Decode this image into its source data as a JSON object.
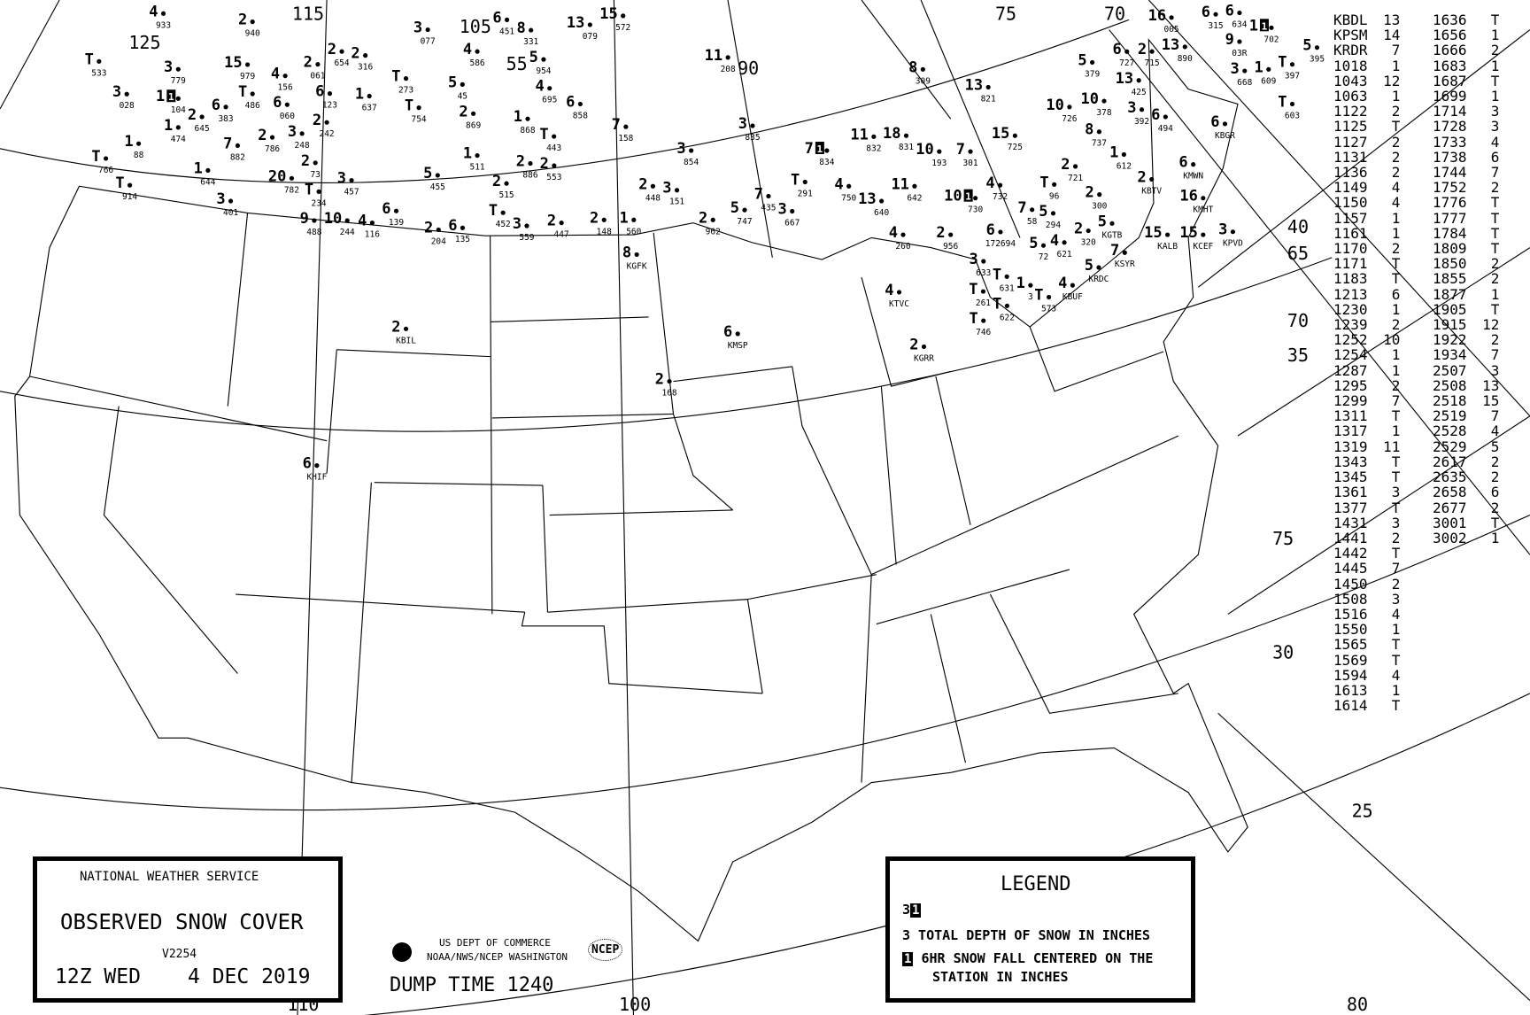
{
  "title_box": {
    "agency": "NATIONAL WEATHER SERVICE",
    "title": "OBSERVED SNOW COVER",
    "version": "V2254",
    "time": "12Z WED",
    "date": "4 DEC 2019"
  },
  "credits": {
    "line1": "US DEPT OF COMMERCE",
    "line2": "NOAA/NWS/NCEP WASHINGTON",
    "ncep_logo": "NCEP",
    "dump_time": "DUMP TIME 1240"
  },
  "legend": {
    "title": "LEGEND",
    "sample_depth": "3",
    "sample_6hr": "1",
    "depth_text": "3 TOTAL DEPTH OF SNOW IN INCHES",
    "sixhr_box": "1",
    "sixhr_text_1": "6HR SNOW FALL CENTERED ON THE",
    "sixhr_text_2": "STATION IN INCHES"
  },
  "grid_labels": [
    "125",
    "115",
    "105",
    "55",
    "90",
    "75",
    "70",
    "40",
    "65",
    "70",
    "35",
    "75",
    "30",
    "25",
    "80",
    "100",
    "110"
  ],
  "colors": {
    "ink": "#000000",
    "background": "#ffffff"
  },
  "stations": [
    {
      "v": "2",
      "id": "KBIL"
    },
    {
      "v": "6",
      "id": "KHIF"
    },
    {
      "v": "8",
      "id": "KGFK"
    },
    {
      "v": "6",
      "id": "KMSP"
    },
    {
      "v": "2",
      "id": "168"
    },
    {
      "v": "4",
      "id": "KTVC"
    },
    {
      "v": "2",
      "id": "KGRR"
    },
    {
      "v": "T",
      "id": "746"
    },
    {
      "v": "T",
      "id": "622"
    },
    {
      "v": "T",
      "id": "573"
    },
    {
      "v": "4",
      "id": "KBUF"
    },
    {
      "v": "5",
      "id": "KRDC"
    },
    {
      "v": "7",
      "id": "KSYR"
    },
    {
      "v": "5",
      "id": "KGTB"
    },
    {
      "v": "2",
      "id": "320"
    },
    {
      "v": "15",
      "id": "KALB"
    },
    {
      "v": "15",
      "id": "KCEF"
    },
    {
      "v": "3",
      "id": "KPVD"
    },
    {
      "v": "16",
      "id": "KMHT"
    },
    {
      "v": "2",
      "id": "KBTV"
    },
    {
      "v": "6",
      "id": "KMWN"
    },
    {
      "v": "6",
      "id": "KBGR"
    },
    {
      "v": "2",
      "id": "300"
    },
    {
      "v": "2",
      "id": "721"
    },
    {
      "v": "1",
      "id": "612"
    },
    {
      "v": "4",
      "id": "732"
    },
    {
      "v": "T",
      "id": "96"
    },
    {
      "v": "7",
      "id": "58"
    },
    {
      "v": "5",
      "id": "294"
    },
    {
      "v": "2",
      "id": "956"
    },
    {
      "v": "4",
      "id": "260"
    },
    {
      "v": "6",
      "id": "172694"
    },
    {
      "v": "3",
      "id": "633"
    },
    {
      "v": "T",
      "id": "631"
    },
    {
      "v": "T",
      "id": "261"
    },
    {
      "v": "5",
      "id": "72"
    },
    {
      "v": "4",
      "id": "621"
    },
    {
      "v": "1",
      "id": "3"
    },
    {
      "v": "4",
      "id": "933"
    },
    {
      "v": "3",
      "id": "779"
    },
    {
      "v": "1",
      "id": "104",
      "six": "1"
    },
    {
      "v": "15",
      "id": "979"
    },
    {
      "v": "2",
      "id": "940"
    },
    {
      "v": "T",
      "id": "533"
    },
    {
      "v": "3",
      "id": "028"
    },
    {
      "v": "1",
      "id": "474"
    },
    {
      "v": "2",
      "id": "645"
    },
    {
      "v": "6",
      "id": "383"
    },
    {
      "v": "T",
      "id": "486"
    },
    {
      "v": "4",
      "id": "156"
    },
    {
      "v": "2",
      "id": "654"
    },
    {
      "v": "2",
      "id": "316"
    },
    {
      "v": "2",
      "id": "061"
    },
    {
      "v": "6",
      "id": "123"
    },
    {
      "v": "3",
      "id": "077"
    },
    {
      "v": "4",
      "id": "586"
    },
    {
      "v": "6",
      "id": "451"
    },
    {
      "v": "8",
      "id": "331"
    },
    {
      "v": "5",
      "id": "954"
    },
    {
      "v": "13",
      "id": "079"
    },
    {
      "v": "15",
      "id": "572"
    },
    {
      "v": "4",
      "id": "695"
    },
    {
      "v": "6",
      "id": "858"
    },
    {
      "v": "1",
      "id": "868"
    },
    {
      "v": "T",
      "id": "443"
    },
    {
      "v": "7",
      "id": "158"
    },
    {
      "v": "11",
      "id": "208"
    },
    {
      "v": "8",
      "id": "309"
    },
    {
      "v": "13",
      "id": "821"
    },
    {
      "v": "10",
      "id": "726"
    },
    {
      "v": "10",
      "id": "378"
    },
    {
      "v": "5",
      "id": "379"
    },
    {
      "v": "6",
      "id": "727"
    },
    {
      "v": "2",
      "id": "715"
    },
    {
      "v": "13",
      "id": "890"
    },
    {
      "v": "13",
      "id": "425"
    },
    {
      "v": "3",
      "id": "392"
    },
    {
      "v": "6",
      "id": "494"
    },
    {
      "v": "8",
      "id": "737"
    },
    {
      "v": "15",
      "id": "725"
    },
    {
      "v": "3",
      "id": "835"
    },
    {
      "v": "3",
      "id": "854"
    },
    {
      "v": "7",
      "id": "834",
      "six": "1"
    },
    {
      "v": "11",
      "id": "832"
    },
    {
      "v": "18",
      "id": "831"
    },
    {
      "v": "10",
      "id": "193"
    },
    {
      "v": "7",
      "id": "301"
    },
    {
      "v": "13",
      "id": "640"
    },
    {
      "v": "11",
      "id": "642"
    },
    {
      "v": "4",
      "id": "750"
    },
    {
      "v": "T",
      "id": "291"
    },
    {
      "v": "10",
      "id": "730",
      "six": "1"
    },
    {
      "v": "7",
      "id": "435"
    },
    {
      "v": "5",
      "id": "747"
    },
    {
      "v": "3",
      "id": "667"
    },
    {
      "v": "2",
      "id": "962"
    },
    {
      "v": "3",
      "id": "401"
    },
    {
      "v": "1",
      "id": "644"
    },
    {
      "v": "T",
      "id": "914"
    },
    {
      "v": "T",
      "id": "766"
    },
    {
      "v": "1",
      "id": "88"
    },
    {
      "v": "7",
      "id": "882"
    },
    {
      "v": "2",
      "id": "786"
    },
    {
      "v": "20",
      "id": "782"
    },
    {
      "v": "T",
      "id": "234"
    },
    {
      "v": "3",
      "id": "457"
    },
    {
      "v": "9",
      "id": "488"
    },
    {
      "v": "10",
      "id": "244"
    },
    {
      "v": "4",
      "id": "116"
    },
    {
      "v": "6",
      "id": "139"
    },
    {
      "v": "2",
      "id": "204"
    },
    {
      "v": "6",
      "id": "135"
    },
    {
      "v": "3",
      "id": "559"
    },
    {
      "v": "2",
      "id": "447"
    },
    {
      "v": "2",
      "id": "148"
    },
    {
      "v": "2",
      "id": "515"
    },
    {
      "v": "T",
      "id": "452"
    },
    {
      "v": "2",
      "id": "886"
    },
    {
      "v": "2",
      "id": "553"
    },
    {
      "v": "1",
      "id": "511"
    },
    {
      "v": "T",
      "id": "754"
    },
    {
      "v": "5",
      "id": "455"
    },
    {
      "v": "2",
      "id": "869"
    },
    {
      "v": "5",
      "id": "45"
    },
    {
      "v": "1",
      "id": "637"
    },
    {
      "v": "T",
      "id": "273"
    },
    {
      "v": "6",
      "id": "060"
    },
    {
      "v": "3",
      "id": "248"
    },
    {
      "v": "2",
      "id": "242"
    },
    {
      "v": "2",
      "id": "73"
    },
    {
      "v": "9",
      "id": "03R"
    },
    {
      "v": "3",
      "id": "668"
    },
    {
      "v": "1",
      "id": "609"
    },
    {
      "v": "T",
      "id": "397"
    },
    {
      "v": "5",
      "id": "395"
    },
    {
      "v": "T",
      "id": "603"
    },
    {
      "v": "6",
      "id": "634"
    },
    {
      "v": "1",
      "id": "702",
      "six": "1"
    },
    {
      "v": "16",
      "id": "005"
    },
    {
      "v": "6",
      "id": "315"
    },
    {
      "v": "2",
      "id": "448"
    },
    {
      "v": "3",
      "id": "151"
    },
    {
      "v": "1",
      "id": "560"
    }
  ],
  "table_col1": [
    [
      "KBDL",
      "13"
    ],
    [
      "KPSM",
      "14"
    ],
    [
      "KRDR",
      "7"
    ],
    [
      "1018",
      "1"
    ],
    [
      "1043",
      "12"
    ],
    [
      "1063",
      "1"
    ],
    [
      "1122",
      "2"
    ],
    [
      "1125",
      "T"
    ],
    [
      "1127",
      "2"
    ],
    [
      "1131",
      "2"
    ],
    [
      "1136",
      "2"
    ],
    [
      "1149",
      "4"
    ],
    [
      "1150",
      "4"
    ],
    [
      "1157",
      "1"
    ],
    [
      "1161",
      "1"
    ],
    [
      "1170",
      "2"
    ],
    [
      "1171",
      "T"
    ],
    [
      "1183",
      "T"
    ],
    [
      "1213",
      "6"
    ],
    [
      "1230",
      "1"
    ],
    [
      "1239",
      "2"
    ],
    [
      "1252",
      "10"
    ],
    [
      "1254",
      "1"
    ],
    [
      "1287",
      "1"
    ],
    [
      "1295",
      "2"
    ],
    [
      "1299",
      "7"
    ],
    [
      "1311",
      "T"
    ],
    [
      "1317",
      "1"
    ],
    [
      "1319",
      "11"
    ],
    [
      "1343",
      "T"
    ],
    [
      "1345",
      "T"
    ],
    [
      "1361",
      "3"
    ],
    [
      "1377",
      "T"
    ],
    [
      "1431",
      "3"
    ],
    [
      "1441",
      "2"
    ],
    [
      "1442",
      "T"
    ],
    [
      "1445",
      "7"
    ],
    [
      "1450",
      "2"
    ],
    [
      "1508",
      "3"
    ],
    [
      "1516",
      "4"
    ],
    [
      "1550",
      "1"
    ],
    [
      "1565",
      "T"
    ],
    [
      "1569",
      "T"
    ],
    [
      "1594",
      "4"
    ],
    [
      "1613",
      "1"
    ],
    [
      "1614",
      "T"
    ]
  ],
  "table_col2": [
    [
      "1636",
      "T"
    ],
    [
      "1656",
      "1"
    ],
    [
      "1666",
      "2"
    ],
    [
      "1683",
      "1"
    ],
    [
      "1687",
      "T"
    ],
    [
      "1699",
      "1"
    ],
    [
      "1714",
      "3"
    ],
    [
      "1728",
      "3"
    ],
    [
      "1733",
      "4"
    ],
    [
      "1738",
      "6"
    ],
    [
      "1744",
      "7"
    ],
    [
      "1752",
      "2"
    ],
    [
      "1776",
      "T"
    ],
    [
      "1777",
      "T"
    ],
    [
      "1784",
      "T"
    ],
    [
      "1809",
      "T"
    ],
    [
      "1850",
      "2"
    ],
    [
      "1855",
      "2"
    ],
    [
      "1877",
      "1"
    ],
    [
      "1905",
      "T"
    ],
    [
      "1915",
      "12"
    ],
    [
      "1922",
      "2"
    ],
    [
      "1934",
      "7"
    ],
    [
      "2507",
      "3"
    ],
    [
      "2508",
      "13"
    ],
    [
      "2518",
      "15"
    ],
    [
      "2519",
      "7"
    ],
    [
      "2528",
      "4"
    ],
    [
      "2529",
      "5"
    ],
    [
      "2617",
      "2"
    ],
    [
      "2635",
      "2"
    ],
    [
      "2658",
      "6"
    ],
    [
      "2677",
      "2"
    ],
    [
      "3001",
      "T"
    ],
    [
      "3002",
      "1"
    ]
  ]
}
